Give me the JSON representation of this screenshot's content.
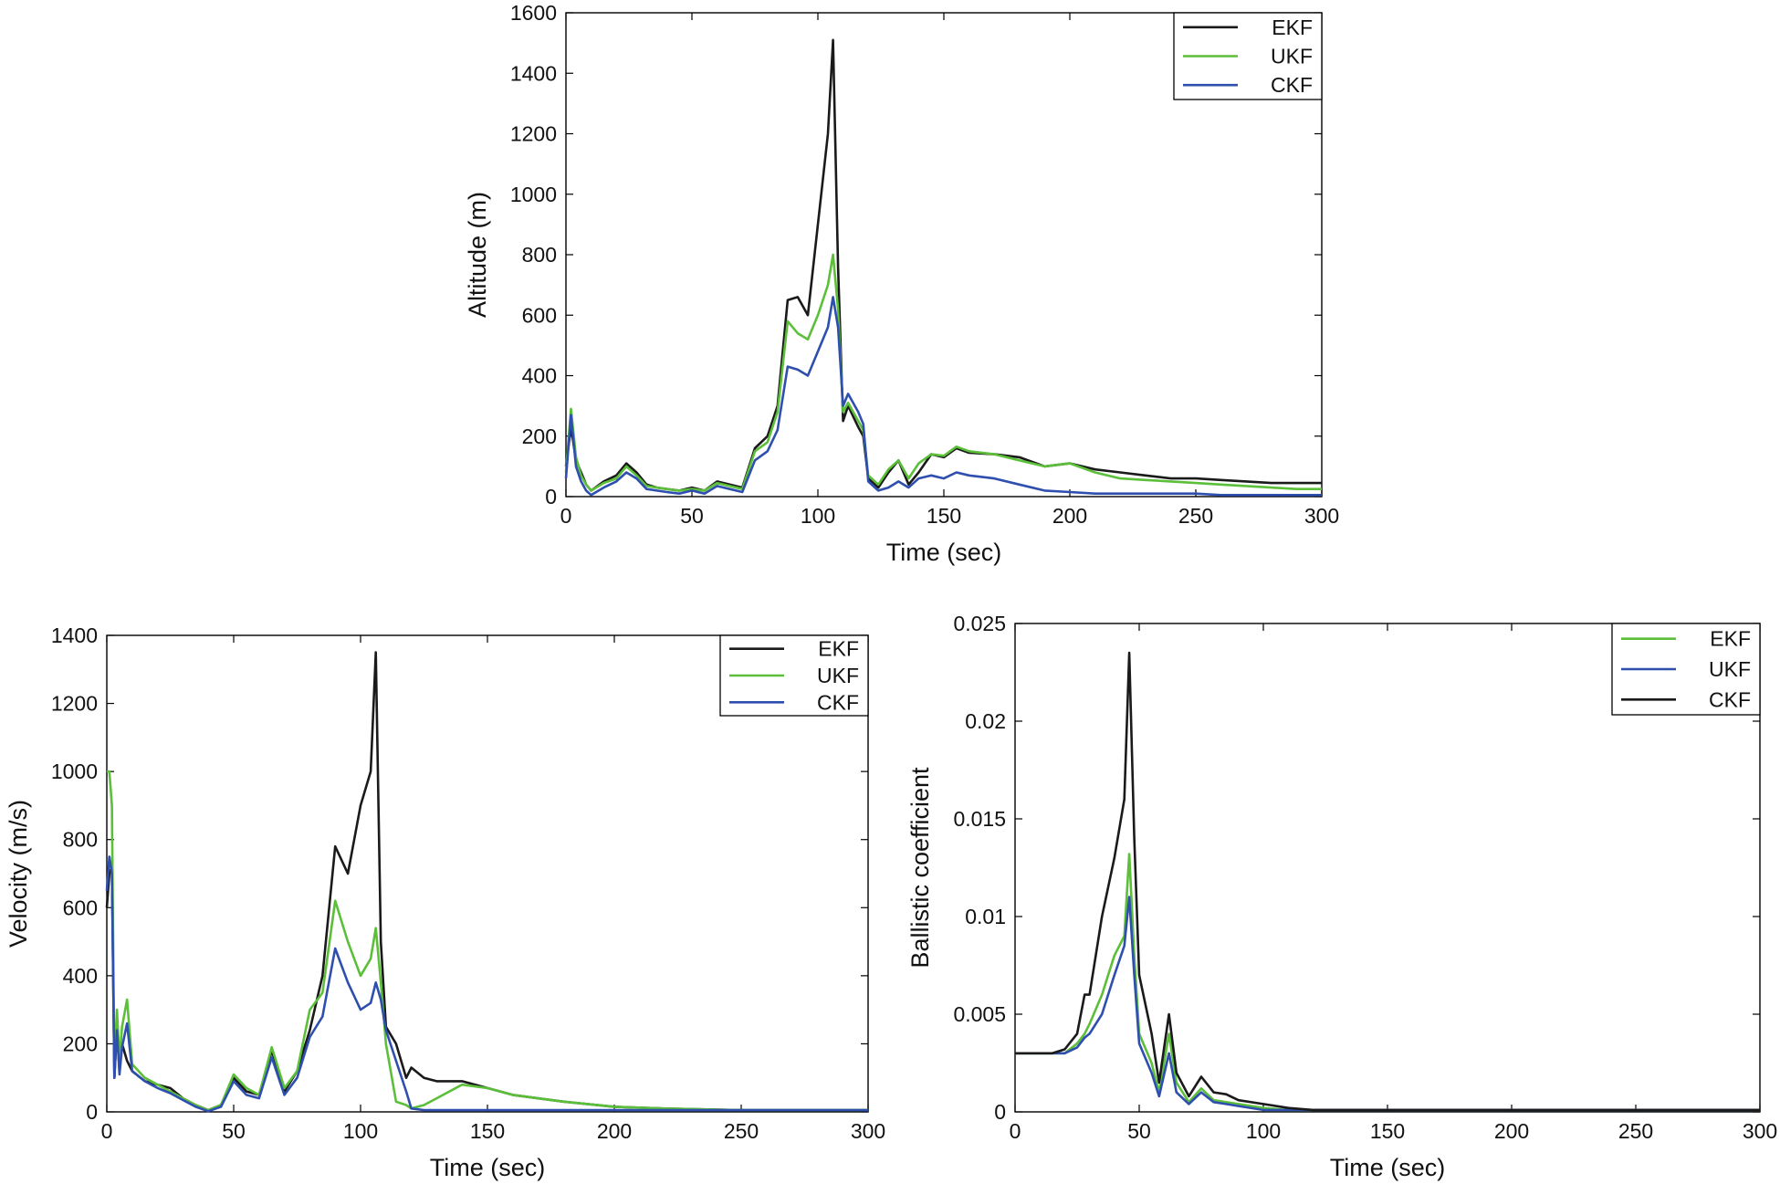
{
  "chart_data": [
    {
      "type": "line",
      "id": "altitude",
      "title": "",
      "xlabel": "Time (sec)",
      "ylabel": "Altitude (m)",
      "xlim": [
        0,
        300
      ],
      "ylim": [
        0,
        1600
      ],
      "xticks": [
        0,
        50,
        100,
        150,
        200,
        250,
        300
      ],
      "yticks": [
        0,
        200,
        400,
        600,
        800,
        1000,
        1200,
        1400,
        1600
      ],
      "legend_position": "top-right",
      "series": [
        {
          "name": "EKF",
          "color": "#1a1a1a",
          "x": [
            0,
            2,
            4,
            6,
            8,
            10,
            15,
            20,
            24,
            28,
            32,
            36,
            40,
            45,
            50,
            55,
            60,
            65,
            70,
            75,
            80,
            84,
            88,
            92,
            96,
            100,
            104,
            106,
            108,
            110,
            112,
            116,
            118,
            120,
            124,
            128,
            132,
            136,
            140,
            145,
            150,
            155,
            160,
            170,
            180,
            190,
            200,
            210,
            220,
            230,
            240,
            250,
            260,
            270,
            280,
            290,
            300
          ],
          "values": [
            100,
            230,
            120,
            80,
            40,
            20,
            50,
            70,
            110,
            80,
            40,
            30,
            25,
            20,
            30,
            20,
            50,
            40,
            30,
            160,
            200,
            300,
            650,
            660,
            600,
            900,
            1200,
            1510,
            760,
            250,
            300,
            230,
            200,
            60,
            30,
            80,
            120,
            40,
            80,
            140,
            130,
            160,
            145,
            140,
            130,
            100,
            110,
            90,
            80,
            70,
            60,
            60,
            55,
            50,
            45,
            45,
            45
          ]
        },
        {
          "name": "UKF",
          "color": "#5cbf3a",
          "x": [
            0,
            2,
            4,
            6,
            8,
            10,
            15,
            20,
            24,
            28,
            32,
            36,
            40,
            45,
            50,
            55,
            60,
            65,
            70,
            75,
            80,
            84,
            88,
            92,
            96,
            100,
            104,
            106,
            108,
            110,
            112,
            116,
            118,
            120,
            124,
            128,
            132,
            136,
            140,
            145,
            150,
            155,
            160,
            170,
            180,
            190,
            200,
            210,
            220,
            230,
            240,
            250,
            260,
            270,
            280,
            290,
            300
          ],
          "values": [
            80,
            290,
            130,
            70,
            40,
            20,
            45,
            60,
            100,
            70,
            35,
            30,
            25,
            20,
            25,
            20,
            45,
            35,
            25,
            150,
            180,
            280,
            580,
            540,
            520,
            600,
            700,
            800,
            620,
            280,
            310,
            250,
            220,
            70,
            40,
            90,
            120,
            60,
            110,
            140,
            135,
            165,
            150,
            140,
            120,
            100,
            110,
            80,
            60,
            55,
            50,
            45,
            40,
            35,
            30,
            25,
            25
          ]
        },
        {
          "name": "CKF",
          "color": "#2f4faf",
          "x": [
            0,
            2,
            4,
            6,
            8,
            10,
            15,
            20,
            24,
            28,
            32,
            36,
            40,
            45,
            50,
            55,
            60,
            65,
            70,
            75,
            80,
            84,
            88,
            92,
            96,
            100,
            104,
            106,
            108,
            110,
            112,
            116,
            118,
            120,
            124,
            128,
            132,
            136,
            140,
            145,
            150,
            155,
            160,
            170,
            180,
            190,
            200,
            210,
            220,
            230,
            240,
            250,
            260,
            270,
            280,
            290,
            300
          ],
          "values": [
            60,
            270,
            100,
            50,
            20,
            5,
            30,
            50,
            80,
            60,
            25,
            20,
            15,
            10,
            20,
            10,
            35,
            25,
            15,
            120,
            150,
            220,
            430,
            420,
            400,
            480,
            560,
            660,
            560,
            300,
            340,
            280,
            240,
            50,
            20,
            30,
            50,
            30,
            60,
            70,
            60,
            80,
            70,
            60,
            40,
            20,
            15,
            10,
            10,
            10,
            10,
            10,
            5,
            5,
            5,
            5,
            5
          ]
        }
      ]
    },
    {
      "type": "line",
      "id": "velocity",
      "title": "",
      "xlabel": "Time (sec)",
      "ylabel": "Velocity (m/s)",
      "xlim": [
        0,
        300
      ],
      "ylim": [
        0,
        1400
      ],
      "xticks": [
        0,
        50,
        100,
        150,
        200,
        250,
        300
      ],
      "yticks": [
        0,
        200,
        400,
        600,
        800,
        1000,
        1200,
        1400
      ],
      "legend_position": "top-right",
      "series": [
        {
          "name": "EKF",
          "color": "#1a1a1a",
          "x": [
            0,
            1,
            2,
            3,
            4,
            5,
            6,
            8,
            10,
            15,
            20,
            25,
            30,
            35,
            40,
            45,
            50,
            55,
            60,
            65,
            70,
            75,
            80,
            85,
            90,
            95,
            100,
            104,
            106,
            108,
            110,
            114,
            118,
            120,
            125,
            130,
            140,
            150,
            160,
            180,
            200,
            220,
            250,
            270,
            300
          ],
          "values": [
            600,
            700,
            720,
            100,
            250,
            120,
            200,
            150,
            120,
            90,
            80,
            70,
            40,
            20,
            5,
            20,
            100,
            60,
            50,
            180,
            60,
            120,
            240,
            400,
            780,
            700,
            900,
            1000,
            1350,
            500,
            250,
            200,
            100,
            130,
            100,
            90,
            90,
            70,
            50,
            30,
            15,
            10,
            5,
            5,
            5
          ]
        },
        {
          "name": "UKF",
          "color": "#5cbf3a",
          "x": [
            0,
            1,
            2,
            3,
            4,
            5,
            6,
            8,
            10,
            15,
            20,
            25,
            30,
            35,
            40,
            45,
            50,
            55,
            60,
            65,
            70,
            75,
            80,
            85,
            90,
            95,
            100,
            104,
            106,
            108,
            110,
            114,
            118,
            120,
            125,
            130,
            140,
            150,
            160,
            180,
            200,
            220,
            250,
            270,
            300
          ],
          "values": [
            1000,
            1000,
            900,
            120,
            300,
            150,
            250,
            330,
            140,
            100,
            80,
            60,
            40,
            20,
            5,
            20,
            110,
            70,
            50,
            190,
            70,
            120,
            300,
            350,
            620,
            500,
            400,
            450,
            540,
            380,
            200,
            30,
            20,
            10,
            20,
            40,
            80,
            70,
            50,
            30,
            15,
            10,
            5,
            5,
            5
          ]
        },
        {
          "name": "CKF",
          "color": "#2f4faf",
          "x": [
            0,
            1,
            2,
            3,
            4,
            5,
            6,
            8,
            10,
            15,
            20,
            25,
            30,
            35,
            40,
            45,
            50,
            55,
            60,
            65,
            70,
            75,
            80,
            85,
            90,
            95,
            100,
            104,
            106,
            108,
            110,
            114,
            118,
            120,
            125,
            130,
            140,
            150,
            160,
            180,
            200,
            220,
            250,
            270,
            300
          ],
          "values": [
            650,
            750,
            700,
            100,
            240,
            110,
            190,
            260,
            120,
            90,
            70,
            55,
            35,
            15,
            2,
            15,
            90,
            50,
            40,
            160,
            50,
            100,
            220,
            280,
            480,
            380,
            300,
            320,
            380,
            330,
            240,
            150,
            60,
            10,
            5,
            5,
            5,
            5,
            5,
            5,
            5,
            5,
            5,
            5,
            5
          ]
        }
      ]
    },
    {
      "type": "line",
      "id": "ballistic",
      "title": "",
      "xlabel": "Time (sec)",
      "ylabel": "Ballistic coefficient",
      "xlim": [
        0,
        300
      ],
      "ylim": [
        0,
        0.025
      ],
      "xticks": [
        0,
        50,
        100,
        150,
        200,
        250,
        300
      ],
      "ytick_labels": [
        "0",
        "0.005",
        "0.01",
        "0.015",
        "0.02",
        "0.025"
      ],
      "yticks": [
        0,
        0.005,
        0.01,
        0.015,
        0.02,
        0.025
      ],
      "legend_position": "top-right",
      "series": [
        {
          "name": "EKF",
          "color": "#5cbf3a",
          "x": [
            0,
            10,
            15,
            20,
            25,
            28,
            30,
            35,
            40,
            44,
            46,
            48,
            50,
            55,
            58,
            62,
            65,
            70,
            75,
            80,
            85,
            90,
            100,
            110,
            120,
            150,
            180,
            200,
            250,
            300
          ],
          "values": [
            0.003,
            0.003,
            0.003,
            0.003,
            0.0035,
            0.004,
            0.0045,
            0.006,
            0.008,
            0.009,
            0.0132,
            0.008,
            0.004,
            0.0025,
            0.001,
            0.004,
            0.0015,
            0.0005,
            0.0012,
            0.0006,
            0.0005,
            0.0004,
            0.0002,
            0.0001,
            0.0001,
            0.0001,
            0.0001,
            0.0001,
            0.0001,
            0.0001
          ]
        },
        {
          "name": "UKF",
          "color": "#2f4faf",
          "x": [
            0,
            10,
            15,
            20,
            25,
            28,
            30,
            35,
            40,
            44,
            46,
            48,
            50,
            55,
            58,
            62,
            65,
            70,
            75,
            80,
            85,
            90,
            100,
            110,
            120,
            150,
            180,
            200,
            250,
            300
          ],
          "values": [
            0.003,
            0.003,
            0.003,
            0.003,
            0.0033,
            0.0038,
            0.004,
            0.005,
            0.007,
            0.0085,
            0.011,
            0.007,
            0.0035,
            0.002,
            0.0008,
            0.003,
            0.001,
            0.0004,
            0.001,
            0.0005,
            0.0004,
            0.0003,
            0.0001,
            0.0001,
            0.0001,
            0.0001,
            0.0001,
            0.0001,
            0.0001,
            0.0001
          ]
        },
        {
          "name": "CKF",
          "color": "#1a1a1a",
          "x": [
            0,
            10,
            15,
            20,
            25,
            28,
            30,
            35,
            40,
            44,
            46,
            48,
            50,
            55,
            58,
            62,
            65,
            70,
            75,
            80,
            85,
            90,
            100,
            110,
            120,
            150,
            180,
            200,
            250,
            300
          ],
          "values": [
            0.003,
            0.003,
            0.003,
            0.0032,
            0.004,
            0.006,
            0.006,
            0.01,
            0.013,
            0.016,
            0.0235,
            0.014,
            0.007,
            0.004,
            0.0015,
            0.005,
            0.002,
            0.0008,
            0.0018,
            0.001,
            0.0009,
            0.0006,
            0.0004,
            0.0002,
            0.0001,
            0.0001,
            0.0001,
            0.0001,
            0.0001,
            0.0001
          ]
        }
      ]
    }
  ]
}
